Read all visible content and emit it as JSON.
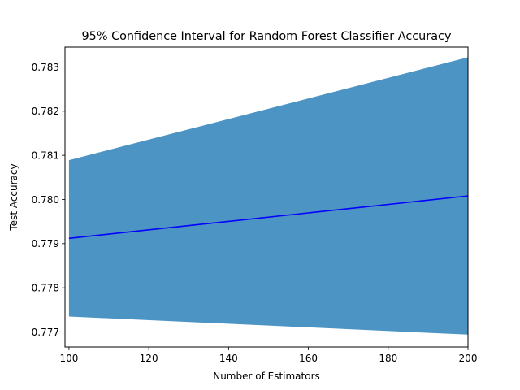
{
  "chart_data": {
    "type": "line",
    "title": "95% Confidence Interval for Random Forest Classifier Accuracy",
    "xlabel": "Number of Estimators",
    "ylabel": "Test Accuracy",
    "xlim": [
      99,
      200
    ],
    "ylim": [
      0.77666,
      0.78345
    ],
    "xticks": [
      100,
      120,
      140,
      160,
      180,
      200
    ],
    "yticks": [
      0.777,
      0.778,
      0.779,
      0.78,
      0.781,
      0.782,
      0.783
    ],
    "ytick_labels": [
      "0.777",
      "0.778",
      "0.779",
      "0.780",
      "0.781",
      "0.782",
      "0.783"
    ],
    "grid": false,
    "series": [
      {
        "kind": "line",
        "x": [
          100,
          200
        ],
        "y": [
          0.77912,
          0.78008
        ],
        "color": "#0000ff"
      },
      {
        "kind": "band",
        "x": [
          100,
          200
        ],
        "lower": [
          0.77735,
          0.77694
        ],
        "upper": [
          0.78089,
          0.78322
        ],
        "color": "#4c94c4"
      }
    ]
  }
}
